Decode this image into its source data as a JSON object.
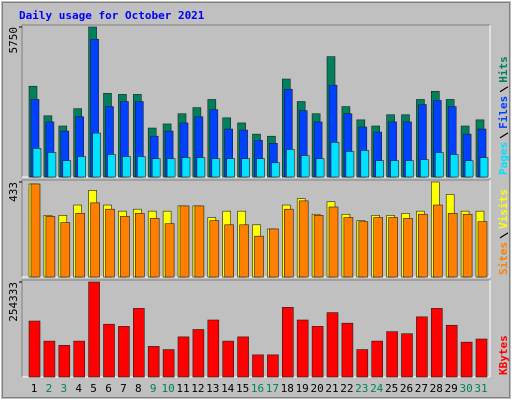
{
  "chart_data": [
    {
      "type": "bar",
      "title": "Daily usage for October 2021",
      "ylim": [
        0,
        5750
      ],
      "yticks": [
        5750
      ],
      "series": [
        {
          "name": "Hits",
          "color": "#00805c",
          "values": [
            3480,
            2346,
            1955,
            2620,
            5750,
            3207,
            3168,
            3168,
            1877,
            2034,
            2425,
            2660,
            2972,
            2268,
            2073,
            1643,
            1564,
            3755,
            2894,
            2425,
            4615,
            2699,
            2190,
            1955,
            2386,
            2386,
            2972,
            3285,
            2972,
            1955,
            2190
          ]
        },
        {
          "name": "Files",
          "color": "#0040ff",
          "values": [
            2973,
            2112,
            1760,
            2308,
            5280,
            2699,
            2894,
            2894,
            1565,
            1760,
            2073,
            2308,
            2582,
            1838,
            1799,
            1408,
            1291,
            3364,
            2542,
            2112,
            3520,
            2425,
            1917,
            1721,
            2112,
            2112,
            2777,
            2934,
            2699,
            1643,
            1838
          ]
        },
        {
          "name": "Pages",
          "color": "#00e0ff",
          "values": [
            1095,
            939,
            626,
            782,
            1682,
            861,
            782,
            782,
            704,
            704,
            743,
            743,
            704,
            704,
            704,
            704,
            548,
            1056,
            821,
            704,
            1330,
            978,
            1017,
            626,
            626,
            626,
            665,
            939,
            861,
            626,
            743
          ]
        }
      ]
    },
    {
      "type": "bar",
      "ylim": [
        0,
        433
      ],
      "yticks": [
        433
      ],
      "series": [
        {
          "name": "Visits",
          "color": "#ffff00",
          "values": [
            424,
            281,
            281,
            328,
            395,
            328,
            300,
            309,
            300,
            300,
            324,
            324,
            271,
            300,
            300,
            238,
            219,
            328,
            357,
            286,
            343,
            286,
            257,
            281,
            281,
            290,
            300,
            433,
            376,
            300,
            300
          ]
        },
        {
          "name": "Sites",
          "color": "#ff8000",
          "values": [
            424,
            276,
            248,
            290,
            338,
            309,
            276,
            290,
            267,
            243,
            324,
            324,
            257,
            238,
            238,
            186,
            219,
            309,
            347,
            281,
            319,
            271,
            252,
            271,
            271,
            267,
            286,
            328,
            290,
            286,
            252
          ]
        }
      ]
    },
    {
      "type": "bar",
      "ylim": [
        0,
        254333
      ],
      "yticks": [
        254333
      ],
      "categories": [
        "1",
        "2",
        "3",
        "4",
        "5",
        "6",
        "7",
        "8",
        "9",
        "10",
        "11",
        "12",
        "13",
        "14",
        "15",
        "16",
        "17",
        "18",
        "19",
        "20",
        "21",
        "22",
        "23",
        "24",
        "25",
        "26",
        "27",
        "28",
        "29",
        "30",
        "31"
      ],
      "category_colors": [
        "#000000",
        "#00805c",
        "#00805c",
        "#000000",
        "#000000",
        "#000000",
        "#000000",
        "#000000",
        "#00805c",
        "#00805c",
        "#000000",
        "#000000",
        "#000000",
        "#000000",
        "#000000",
        "#00805c",
        "#00805c",
        "#000000",
        "#000000",
        "#000000",
        "#000000",
        "#000000",
        "#00805c",
        "#00805c",
        "#000000",
        "#000000",
        "#000000",
        "#000000",
        "#000000",
        "#00805c",
        "#00805c"
      ],
      "series": [
        {
          "name": "KBytes",
          "color": "#ff0000",
          "values": [
            149800,
            96100,
            84800,
            96100,
            254333,
            141300,
            135600,
            183700,
            82000,
            73500,
            107400,
            127200,
            152600,
            96100,
            107400,
            59300,
            59300,
            186500,
            152600,
            135600,
            172400,
            144100,
            73500,
            96100,
            121500,
            115900,
            161100,
            183700,
            138500,
            93300,
            101700
          ]
        }
      ]
    }
  ]
}
